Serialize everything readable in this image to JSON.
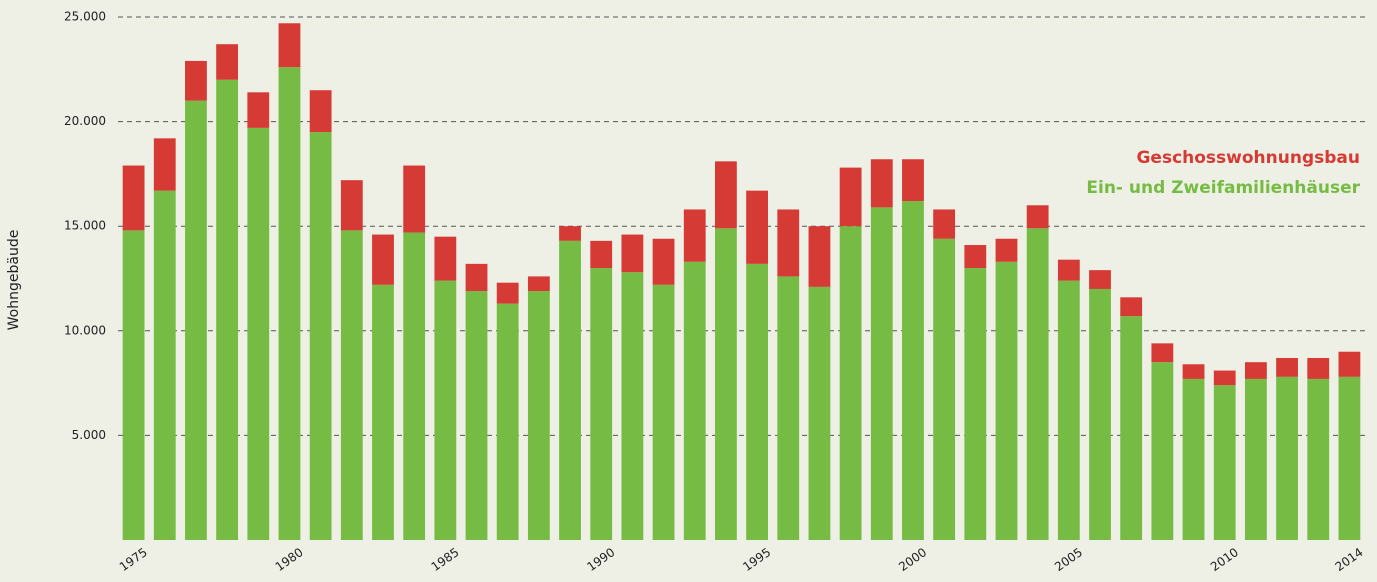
{
  "chart_data": {
    "type": "stacked_bar",
    "y_label": "Wohngebäude",
    "categories": [
      "1975",
      null,
      null,
      null,
      null,
      "1980",
      null,
      null,
      null,
      null,
      "1985",
      null,
      null,
      null,
      null,
      "1990",
      null,
      null,
      null,
      null,
      "1995",
      null,
      null,
      null,
      null,
      "2000",
      null,
      null,
      null,
      null,
      "2005",
      null,
      null,
      null,
      null,
      "2010",
      null,
      null,
      null,
      "2014"
    ],
    "series": [
      {
        "name": "Ein- und Zweifamilienhäuser",
        "color": "#76bc44",
        "values": [
          14800,
          16700,
          21000,
          22000,
          19700,
          22600,
          19500,
          14800,
          12200,
          14700,
          12400,
          11900,
          11300,
          11900,
          14300,
          13000,
          12800,
          12200,
          13300,
          14900,
          13200,
          12600,
          12100,
          15000,
          15900,
          16200,
          14400,
          13000,
          13300,
          14900,
          12400,
          12000,
          10700,
          8500,
          7700,
          7400,
          7700,
          7800,
          7700,
          7800
        ]
      },
      {
        "name": "Geschosswohnungsbau",
        "color": "#d63a35",
        "values": [
          3100,
          2500,
          1900,
          1700,
          1700,
          2100,
          2000,
          2400,
          2400,
          3200,
          2100,
          1300,
          1000,
          700,
          700,
          1300,
          1800,
          2200,
          2500,
          3200,
          3500,
          3200,
          2900,
          2800,
          2300,
          2000,
          1400,
          1100,
          1100,
          1100,
          1000,
          900,
          900,
          900,
          700,
          700,
          800,
          900,
          1000,
          1200
        ]
      }
    ],
    "ylim": [
      0,
      25000
    ],
    "yticks": [
      {
        "value": 5000,
        "label": "5.000"
      },
      {
        "value": 10000,
        "label": "10.000"
      },
      {
        "value": 15000,
        "label": "15.000"
      },
      {
        "value": 20000,
        "label": "20.000"
      },
      {
        "value": 25000,
        "label": "25.000"
      }
    ],
    "grid": true,
    "legend": "right"
  }
}
